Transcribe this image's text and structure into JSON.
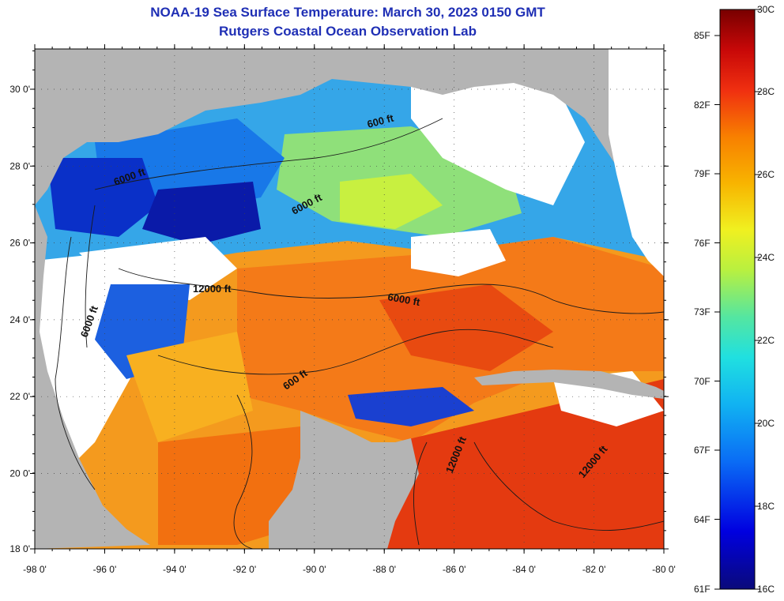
{
  "header": {
    "title": "NOAA-19 Sea Surface Temperature:  March 30, 2023 0150 GMT",
    "subtitle": "Rutgers Coastal Ocean Observation Lab"
  },
  "map": {
    "lat_labels": [
      "30 0'",
      "28 0'",
      "26 0'",
      "24 0'",
      "22 0'",
      "20 0'",
      "18 0'"
    ],
    "lon_labels": [
      "-98 0'",
      "-96 0'",
      "-94 0'",
      "-92 0'",
      "-90 0'",
      "-88 0'",
      "-86 0'",
      "-84 0'",
      "-82 0'",
      "-80 0'"
    ],
    "contour_labels": [
      {
        "text": "600 ft"
      },
      {
        "text": "6000 ft"
      },
      {
        "text": "6000 ft"
      },
      {
        "text": "12000 ft"
      },
      {
        "text": "6000 ft"
      },
      {
        "text": "600 ft"
      },
      {
        "text": "12000 ft"
      },
      {
        "text": "12000 ft"
      },
      {
        "text": "6000 ft"
      }
    ]
  },
  "colorbar": {
    "fahrenheit": [
      "85F",
      "82F",
      "79F",
      "76F",
      "73F",
      "70F",
      "67F",
      "64F",
      "61F"
    ],
    "celsius": [
      "30C",
      "28C",
      "26C",
      "24C",
      "22C",
      "20C",
      "18C",
      "16C"
    ]
  },
  "colors": {
    "land": "#b4b4b4",
    "title": "#1f2fb5",
    "cloud": "#ffffff"
  }
}
